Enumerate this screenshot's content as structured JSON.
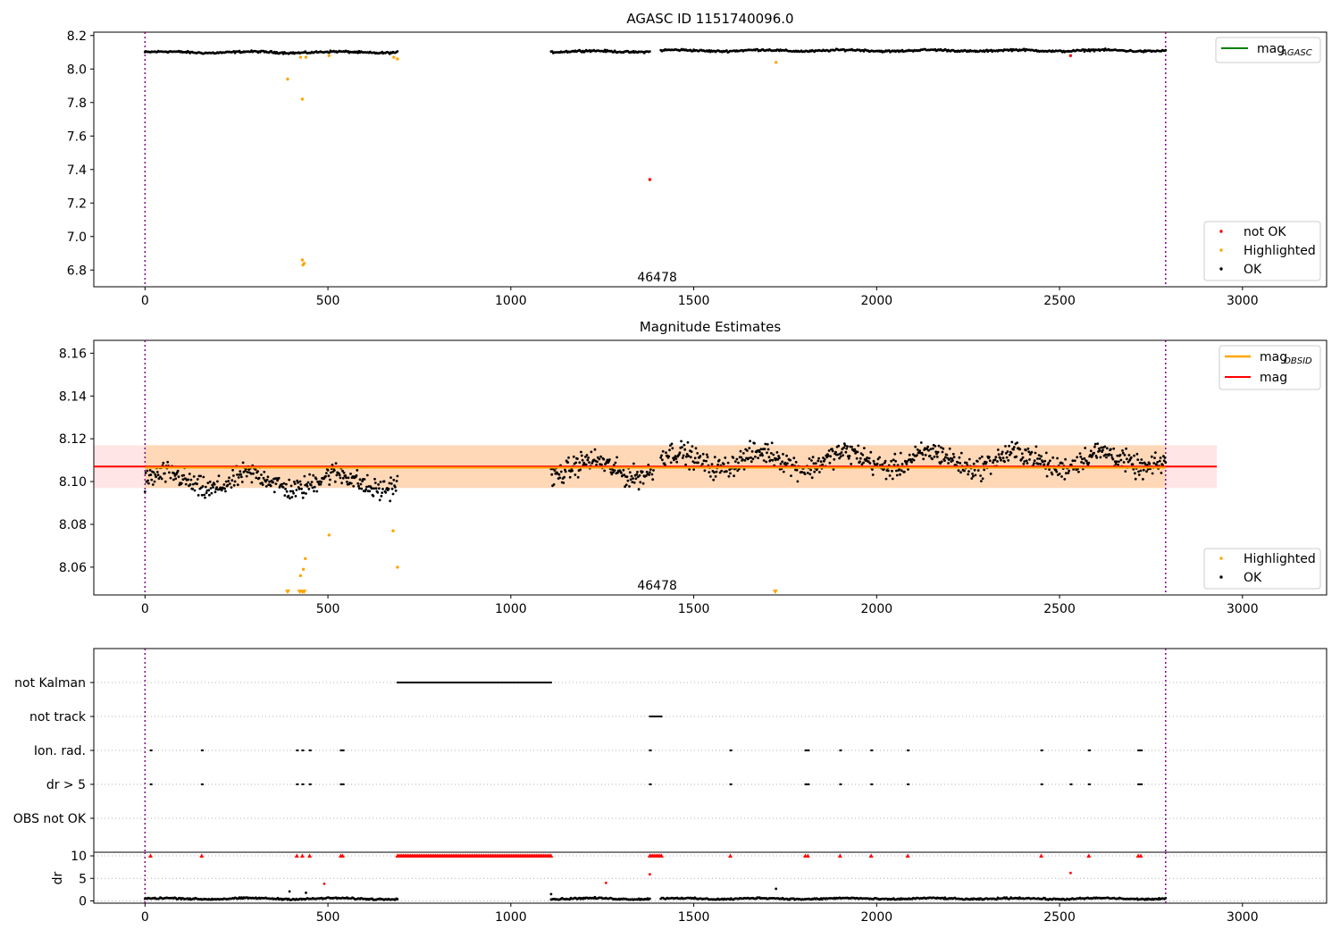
{
  "chart_data": [
    {
      "type": "scatter",
      "title": "AGASC ID 1151740096.0",
      "xlim": [
        -140,
        3230
      ],
      "ylim": [
        6.7,
        8.22
      ],
      "xticks": [
        0,
        500,
        1000,
        1500,
        2000,
        2500,
        3000
      ],
      "yticks": [
        6.8,
        7.0,
        7.2,
        7.4,
        7.6,
        7.8,
        8.0,
        8.2
      ],
      "yticklabels": [
        "6.8",
        "7.0",
        "7.2",
        "7.4",
        "7.6",
        "7.8",
        "8.0",
        "8.2"
      ],
      "vlines": [
        0,
        2790
      ],
      "annotation": {
        "text": "46478",
        "x": 1400,
        "y": 6.76
      },
      "legend_upper": {
        "placement": "top-right",
        "entries": [
          {
            "label": "mag",
            "sub": "AGASC",
            "color": "#008000"
          }
        ]
      },
      "legend_lower": {
        "placement": "bottom-right",
        "entries": [
          {
            "label": "not OK",
            "color": "#ff0000"
          },
          {
            "label": "Highlighted",
            "color": "#ffa500"
          },
          {
            "label": "OK",
            "color": "#000000"
          }
        ]
      },
      "ok_segments": [
        {
          "x0": 0,
          "x1": 690,
          "base": 8.1,
          "amp": 0.012
        },
        {
          "x0": 1110,
          "x1": 1380,
          "base": 8.105,
          "amp": 0.012
        },
        {
          "x0": 1410,
          "x1": 2790,
          "base": 8.11,
          "amp": 0.012
        }
      ],
      "highlighted": [
        {
          "x": 390,
          "y": 7.94
        },
        {
          "x": 425,
          "y": 8.07
        },
        {
          "x": 430,
          "y": 7.82
        },
        {
          "x": 430,
          "y": 6.86
        },
        {
          "x": 432,
          "y": 6.83
        },
        {
          "x": 435,
          "y": 6.84
        },
        {
          "x": 440,
          "y": 8.07
        },
        {
          "x": 503,
          "y": 8.08
        },
        {
          "x": 680,
          "y": 8.07
        },
        {
          "x": 690,
          "y": 8.06
        },
        {
          "x": 1725,
          "y": 8.04
        }
      ],
      "not_ok": [
        {
          "x": 1380,
          "y": 7.34
        },
        {
          "x": 2530,
          "y": 8.08
        }
      ]
    },
    {
      "type": "scatter",
      "title": "Magnitude Estimates",
      "xlim": [
        -140,
        3230
      ],
      "ylim": [
        8.047,
        8.166
      ],
      "xticks": [
        0,
        500,
        1000,
        1500,
        2000,
        2500,
        3000
      ],
      "yticks": [
        8.06,
        8.08,
        8.1,
        8.12,
        8.14,
        8.16
      ],
      "yticklabels": [
        "8.06",
        "8.08",
        "8.10",
        "8.12",
        "8.14",
        "8.16"
      ],
      "vlines": [
        0,
        2790
      ],
      "annotation": {
        "text": "46478",
        "x": 1400,
        "y": 8.0515
      },
      "mag": 8.107,
      "mag_band": [
        8.097,
        8.117
      ],
      "mag_obsid": 8.1065,
      "obsid_band": [
        8.097,
        8.117
      ],
      "band_x": [
        -140,
        2930
      ],
      "legend_upper": {
        "placement": "top-right",
        "entries": [
          {
            "label": "mag",
            "sub": "OBSID",
            "color": "#ffa500"
          },
          {
            "label": "mag",
            "sub": "",
            "color": "#ff0000"
          }
        ]
      },
      "legend_lower": {
        "placement": "bottom-right",
        "entries": [
          {
            "label": "Highlighted",
            "color": "#ffa500"
          },
          {
            "label": "OK",
            "color": "#000000"
          }
        ]
      },
      "ok_segments": [
        {
          "x0": 0,
          "x1": 690,
          "base": 8.1,
          "amp": 0.011
        },
        {
          "x0": 1110,
          "x1": 1390,
          "base": 8.106,
          "amp": 0.011
        },
        {
          "x0": 1410,
          "x1": 2790,
          "base": 8.11,
          "amp": 0.011
        }
      ],
      "highlighted": [
        {
          "x": 425,
          "y": 8.056
        },
        {
          "x": 433,
          "y": 8.059
        },
        {
          "x": 438,
          "y": 8.064
        },
        {
          "x": 503,
          "y": 8.075
        },
        {
          "x": 678,
          "y": 8.077
        },
        {
          "x": 690,
          "y": 8.06
        }
      ],
      "highlighted_triangles": [
        390,
        423,
        430,
        435,
        1723
      ]
    },
    {
      "type": "scatter",
      "categories": [
        "not Kalman",
        "not track",
        "Ion. rad.",
        "dr > 5",
        "OBS not OK"
      ],
      "xlim": [
        -140,
        3230
      ],
      "vlines": [
        0,
        2790
      ],
      "flags": {
        "not Kalman": [
          [
            690,
            1110
          ]
        ],
        "not track": [
          [
            1380,
            1415
          ]
        ],
        "Ion. rad.": [
          15,
          155,
          415,
          430,
          450,
          535,
          540,
          1380,
          1600,
          1805,
          1812,
          1900,
          1985,
          2085,
          2450,
          2580,
          2715,
          2722
        ],
        "dr > 5": [
          15,
          155,
          415,
          430,
          450,
          535,
          540,
          1380,
          1600,
          1805,
          1812,
          1900,
          1985,
          2085,
          2450,
          2530,
          2580,
          2715,
          2722
        ],
        "OBS not OK": []
      }
    },
    {
      "type": "scatter",
      "ylabel": "dr",
      "xlim": [
        -140,
        3230
      ],
      "ylim": [
        -0.5,
        10.8
      ],
      "xticks": [
        0,
        500,
        1000,
        1500,
        2000,
        2500,
        3000
      ],
      "yticks": [
        0,
        5,
        10
      ],
      "yticklabels": [
        "0",
        "5",
        "10"
      ],
      "vlines": [
        0,
        2790
      ],
      "ok_segments": [
        {
          "x0": 0,
          "x1": 690,
          "base": 0.5,
          "amp": 0.35
        },
        {
          "x0": 1110,
          "x1": 1380,
          "base": 0.5,
          "amp": 0.35
        },
        {
          "x0": 1410,
          "x1": 2790,
          "base": 0.5,
          "amp": 0.35
        }
      ],
      "red_at_10": [
        15,
        155,
        415,
        430,
        450,
        535,
        540,
        1600,
        1805,
        1812,
        1900,
        1985,
        2085,
        2450,
        2580,
        2715,
        2722
      ],
      "red_bands_at_10": [
        [
          690,
          1110
        ],
        [
          1380,
          1415
        ]
      ],
      "red_points": [
        {
          "x": 490,
          "y": 3.8
        },
        {
          "x": 1260,
          "y": 4.0
        },
        {
          "x": 1380,
          "y": 5.9
        },
        {
          "x": 2530,
          "y": 6.2
        }
      ],
      "black_outliers": [
        {
          "x": 395,
          "y": 2.1
        },
        {
          "x": 440,
          "y": 1.8
        },
        {
          "x": 1110,
          "y": 1.5
        },
        {
          "x": 1725,
          "y": 2.7
        }
      ]
    }
  ]
}
